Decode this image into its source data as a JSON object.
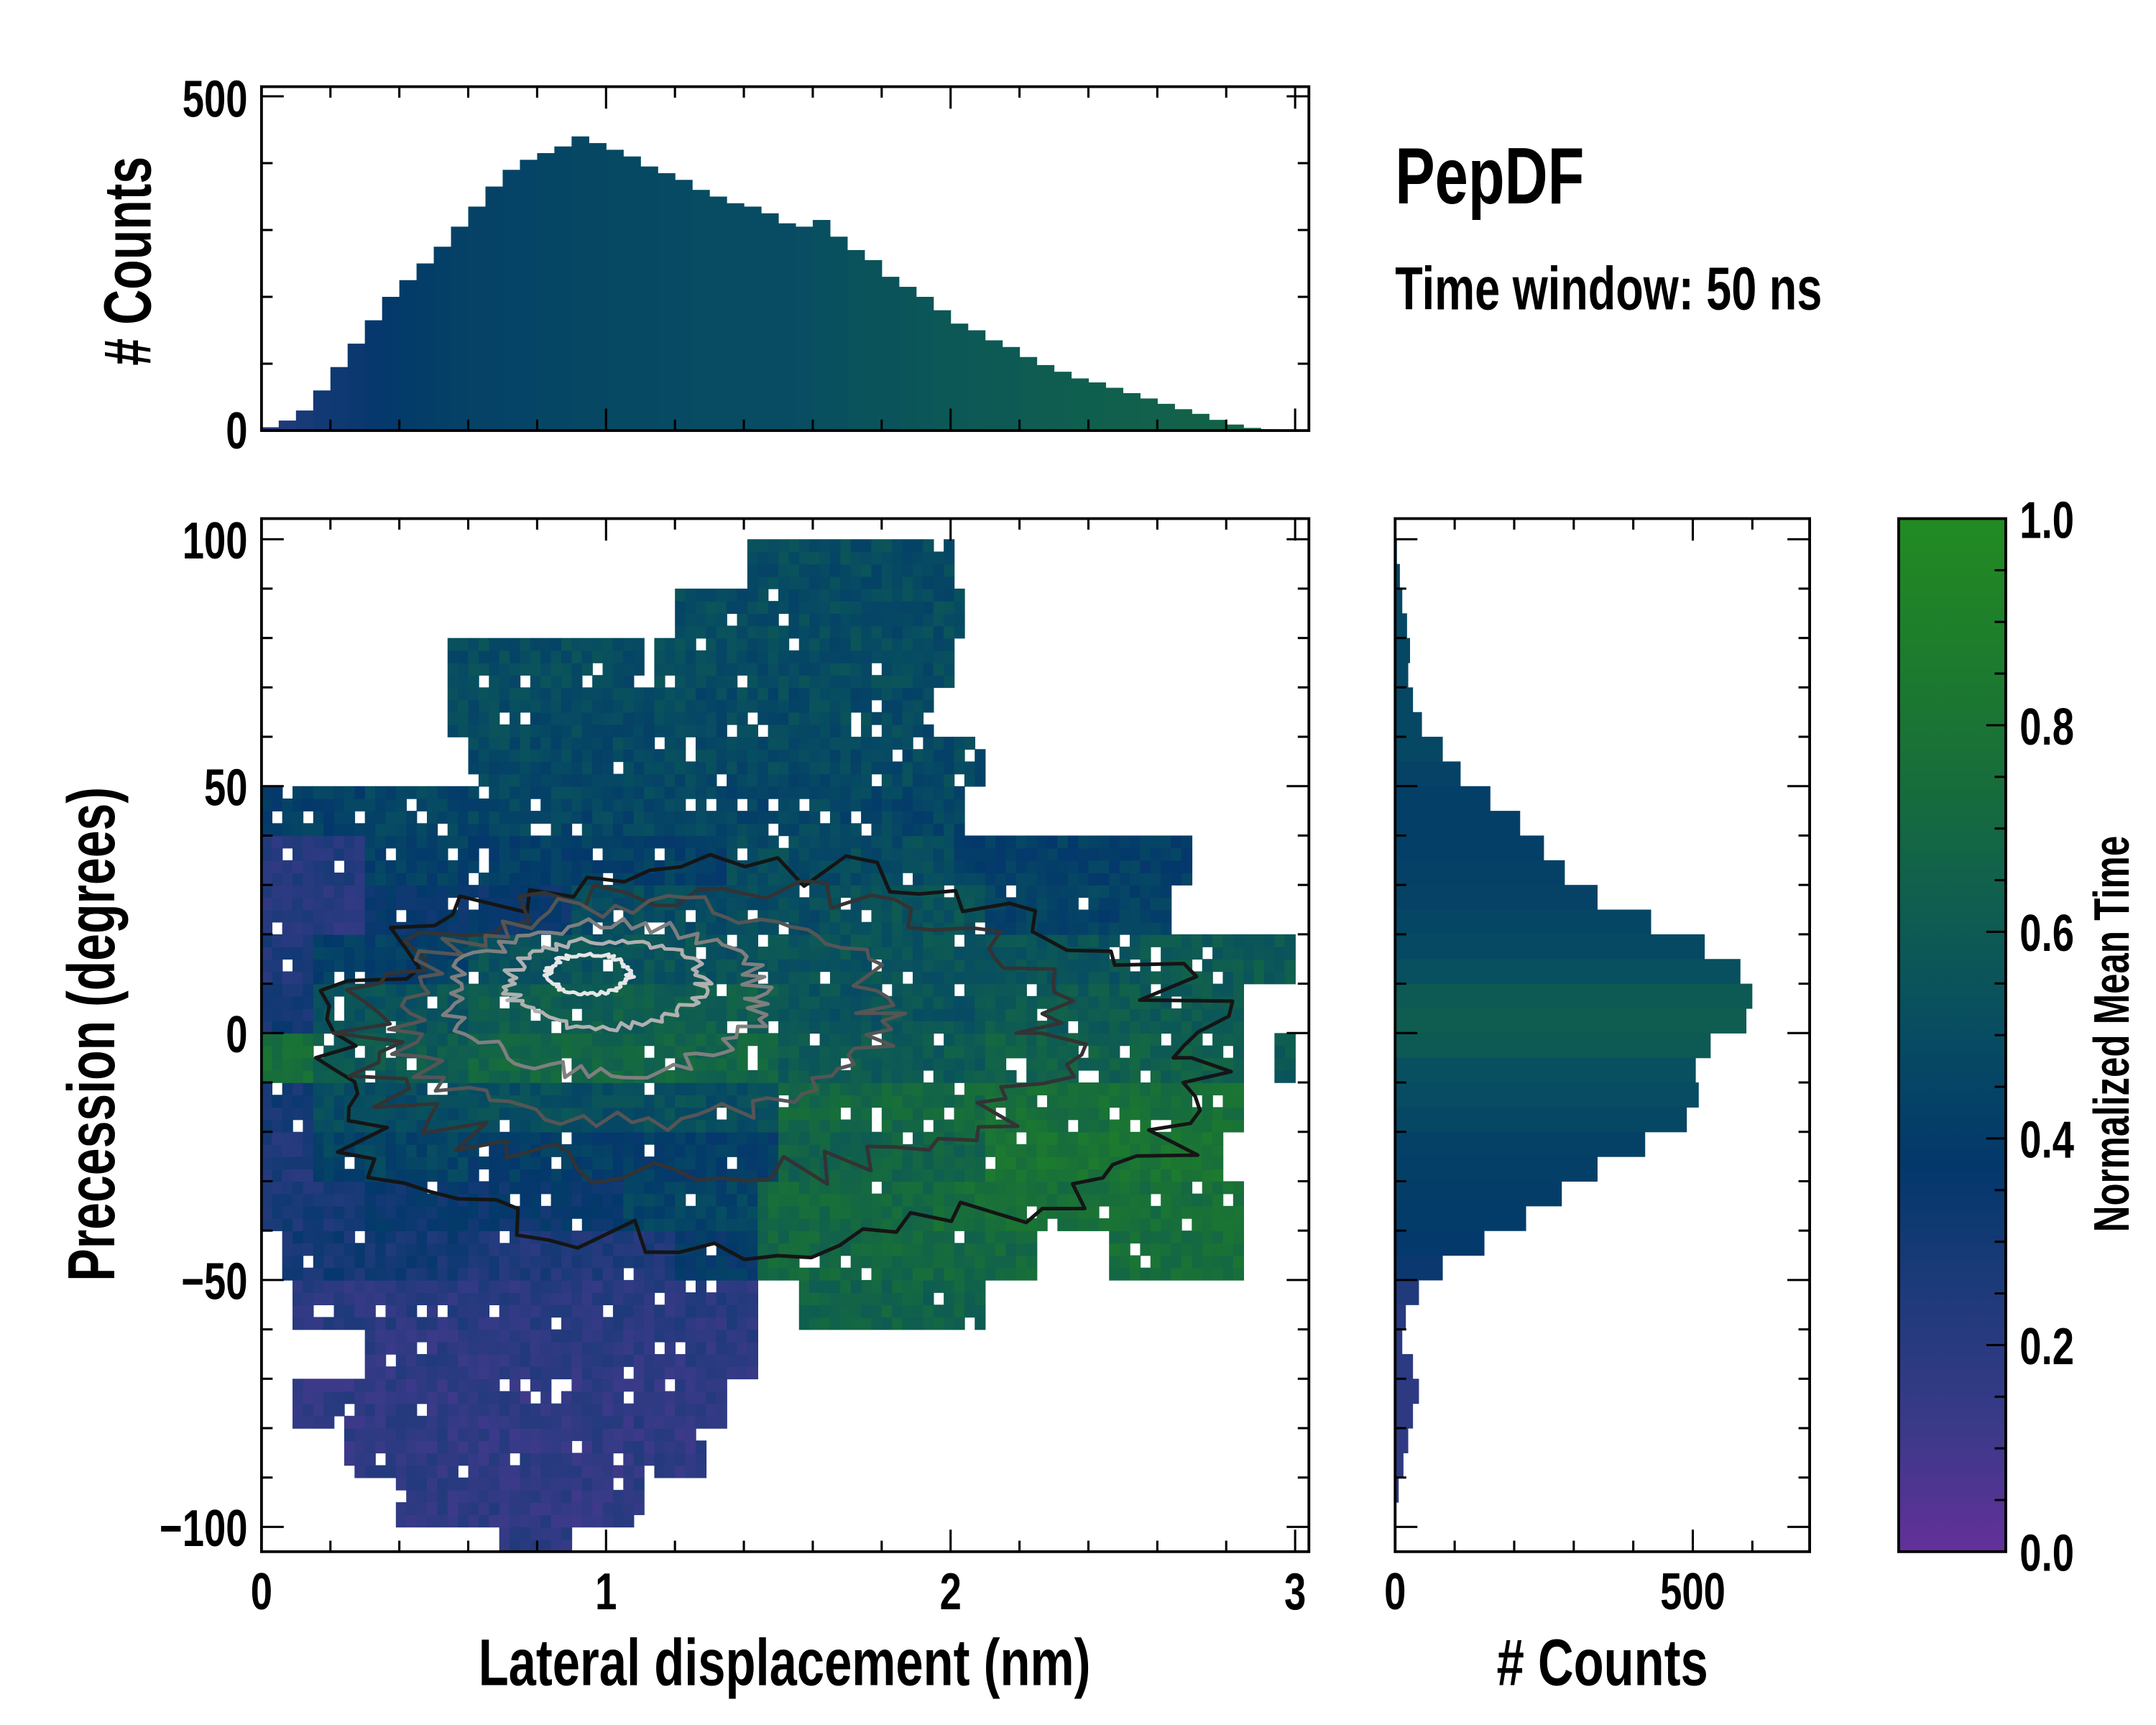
{
  "title": "PepDF",
  "subtitle": "Time window: 50 ns",
  "chart_data": [
    {
      "id": "top-histogram",
      "type": "bar",
      "ylabel": "# Counts",
      "xlim": [
        0,
        3.03
      ],
      "ylim": [
        0,
        515
      ],
      "ytick_labels": [
        "0",
        "500"
      ],
      "bin_width": 0.05,
      "bin_starts": [
        0,
        0.05,
        0.1,
        0.15,
        0.2,
        0.25,
        0.3,
        0.35,
        0.4,
        0.45,
        0.5,
        0.55,
        0.6,
        0.65,
        0.7,
        0.75,
        0.8,
        0.85,
        0.9,
        0.95,
        1.0,
        1.05,
        1.1,
        1.15,
        1.2,
        1.25,
        1.3,
        1.35,
        1.4,
        1.45,
        1.5,
        1.55,
        1.6,
        1.65,
        1.7,
        1.75,
        1.8,
        1.85,
        1.9,
        1.95,
        2.0,
        2.05,
        2.1,
        2.15,
        2.2,
        2.25,
        2.3,
        2.35,
        2.4,
        2.45,
        2.5,
        2.55,
        2.6,
        2.65,
        2.7,
        2.75,
        2.8,
        2.85,
        2.9,
        2.95
      ],
      "values": [
        5,
        15,
        30,
        60,
        95,
        130,
        165,
        200,
        225,
        250,
        275,
        305,
        335,
        365,
        390,
        405,
        415,
        425,
        440,
        430,
        420,
        410,
        395,
        385,
        375,
        360,
        350,
        340,
        335,
        325,
        310,
        305,
        315,
        290,
        270,
        255,
        230,
        215,
        200,
        180,
        160,
        150,
        135,
        125,
        110,
        98,
        88,
        78,
        72,
        64,
        56,
        48,
        40,
        32,
        25,
        16,
        9,
        4,
        2,
        0
      ],
      "mean_time": [
        0.22,
        0.25,
        0.28,
        0.3,
        0.32,
        0.34,
        0.36,
        0.38,
        0.4,
        0.41,
        0.42,
        0.43,
        0.44,
        0.44,
        0.45,
        0.45,
        0.46,
        0.46,
        0.47,
        0.47,
        0.48,
        0.48,
        0.48,
        0.49,
        0.49,
        0.5,
        0.5,
        0.5,
        0.5,
        0.5,
        0.5,
        0.51,
        0.52,
        0.53,
        0.54,
        0.55,
        0.55,
        0.56,
        0.57,
        0.58,
        0.58,
        0.59,
        0.6,
        0.6,
        0.61,
        0.62,
        0.62,
        0.63,
        0.63,
        0.64,
        0.64,
        0.65,
        0.65,
        0.66,
        0.66,
        0.66,
        0.67,
        0.67,
        0.67,
        0.67
      ]
    },
    {
      "id": "main-heatmap",
      "type": "heatmap",
      "xlabel": "Lateral displacement (nm)",
      "ylabel": "Precession (degrees)",
      "xlim": [
        0,
        3.03
      ],
      "ylim": [
        -105,
        104
      ],
      "xtick_labels": [
        "0",
        "1",
        "2",
        "3"
      ],
      "xticks": [
        0,
        1,
        2,
        3
      ],
      "ytick_labels": [
        "100",
        "50",
        "0",
        "−50",
        "−100"
      ],
      "yticks": [
        100,
        50,
        0,
        -50,
        -100
      ],
      "value_label": "Normalized Mean Time",
      "rows": [
        {
          "y": [
            90,
            100
          ],
          "segments": [
            [
              1.42,
              2.02,
              0.5
            ]
          ]
        },
        {
          "y": [
            80,
            90
          ],
          "segments": [
            [
              1.2,
              2.05,
              0.5
            ]
          ]
        },
        {
          "y": [
            70,
            80
          ],
          "segments": [
            [
              0.55,
              1.1,
              0.5
            ],
            [
              1.15,
              2.0,
              0.5
            ]
          ]
        },
        {
          "y": [
            60,
            70
          ],
          "segments": [
            [
              0.55,
              1.95,
              0.49
            ]
          ]
        },
        {
          "y": [
            50,
            60
          ],
          "segments": [
            [
              0.6,
              2.1,
              0.48
            ]
          ]
        },
        {
          "y": [
            40,
            50
          ],
          "segments": [
            [
              0.0,
              0.3,
              0.42
            ],
            [
              0.3,
              2.05,
              0.46
            ]
          ]
        },
        {
          "y": [
            30,
            40
          ],
          "segments": [
            [
              0.0,
              0.3,
              0.22
            ],
            [
              0.3,
              1.35,
              0.42
            ],
            [
              1.35,
              2.0,
              0.5
            ],
            [
              2.0,
              2.7,
              0.42
            ]
          ]
        },
        {
          "y": [
            20,
            30
          ],
          "segments": [
            [
              0.0,
              0.3,
              0.2
            ],
            [
              0.3,
              0.9,
              0.36
            ],
            [
              0.9,
              1.65,
              0.5
            ],
            [
              1.65,
              2.1,
              0.55
            ],
            [
              2.1,
              2.65,
              0.44
            ]
          ]
        },
        {
          "y": [
            10,
            20
          ],
          "segments": [
            [
              0.0,
              0.15,
              0.25
            ],
            [
              0.15,
              0.6,
              0.42
            ],
            [
              0.6,
              1.5,
              0.55
            ],
            [
              1.5,
              2.1,
              0.55
            ],
            [
              2.1,
              2.55,
              0.55
            ],
            [
              2.55,
              3.0,
              0.6
            ]
          ]
        },
        {
          "y": [
            0,
            10
          ],
          "segments": [
            [
              0.0,
              0.15,
              0.3
            ],
            [
              0.15,
              0.6,
              0.55
            ],
            [
              0.6,
              1.5,
              0.63
            ],
            [
              1.5,
              2.1,
              0.55
            ],
            [
              2.1,
              2.85,
              0.6
            ]
          ]
        },
        {
          "y": [
            -10,
            0
          ],
          "segments": [
            [
              0.0,
              0.15,
              0.75
            ],
            [
              0.15,
              0.6,
              0.6
            ],
            [
              0.6,
              1.5,
              0.68
            ],
            [
              1.5,
              2.1,
              0.6
            ],
            [
              2.1,
              2.85,
              0.65
            ],
            [
              2.93,
              2.99,
              0.6
            ]
          ]
        },
        {
          "y": [
            -20,
            -10
          ],
          "segments": [
            [
              0.0,
              0.15,
              0.3
            ],
            [
              0.15,
              0.6,
              0.5
            ],
            [
              0.6,
              1.5,
              0.52
            ],
            [
              1.5,
              2.1,
              0.7
            ],
            [
              2.1,
              2.85,
              0.76
            ]
          ]
        },
        {
          "y": [
            -30,
            -20
          ],
          "segments": [
            [
              0.0,
              0.15,
              0.25
            ],
            [
              0.15,
              0.6,
              0.45
            ],
            [
              0.6,
              1.5,
              0.4
            ],
            [
              1.5,
              2.1,
              0.66
            ],
            [
              2.1,
              2.8,
              0.8
            ]
          ]
        },
        {
          "y": [
            -40,
            -30
          ],
          "segments": [
            [
              0.0,
              0.3,
              0.28
            ],
            [
              0.3,
              1.05,
              0.35
            ],
            [
              1.05,
              1.45,
              0.45
            ],
            [
              1.45,
              1.95,
              0.7
            ],
            [
              1.95,
              2.85,
              0.75
            ]
          ]
        },
        {
          "y": [
            -50,
            -40
          ],
          "segments": [
            [
              0.05,
              0.6,
              0.3
            ],
            [
              0.6,
              1.2,
              0.25
            ],
            [
              1.2,
              1.45,
              0.38
            ],
            [
              1.45,
              2.25,
              0.7
            ],
            [
              2.45,
              2.85,
              0.75
            ]
          ]
        },
        {
          "y": [
            -60,
            -50
          ],
          "segments": [
            [
              0.1,
              1.45,
              0.2
            ],
            [
              1.55,
              2.1,
              0.66
            ]
          ]
        },
        {
          "y": [
            -70,
            -60
          ],
          "segments": [
            [
              0.3,
              1.45,
              0.18
            ]
          ]
        },
        {
          "y": [
            -80,
            -70
          ],
          "segments": [
            [
              0.1,
              1.35,
              0.17
            ]
          ]
        },
        {
          "y": [
            -90,
            -80
          ],
          "segments": [
            [
              0.25,
              1.3,
              0.17
            ]
          ]
        },
        {
          "y": [
            -100,
            -90
          ],
          "segments": [
            [
              0.4,
              1.1,
              0.17
            ]
          ]
        },
        {
          "y": [
            -105,
            -100
          ],
          "segments": [
            [
              0.7,
              0.9,
              0.18
            ]
          ]
        }
      ],
      "contours": [
        {
          "center": [
            1.45,
            -5
          ],
          "radii": [
            1.3,
            38
          ],
          "color": "#151515"
        },
        {
          "center": [
            1.3,
            0
          ],
          "radii": [
            1.0,
            29
          ],
          "color": "#333333"
        },
        {
          "center": [
            1.1,
            4
          ],
          "radii": [
            0.7,
            22
          ],
          "color": "#555555"
        },
        {
          "center": [
            1.0,
            7
          ],
          "radii": [
            0.45,
            15
          ],
          "color": "#7f7f7f"
        },
        {
          "center": [
            1.0,
            10
          ],
          "radii": [
            0.28,
            9
          ],
          "color": "#b0b0b0"
        },
        {
          "center": [
            0.95,
            12
          ],
          "radii": [
            0.12,
            4
          ],
          "color": "#e6e6e6"
        }
      ]
    },
    {
      "id": "right-histogram",
      "type": "bar",
      "orientation": "horizontal",
      "xlabel": "# Counts",
      "xlim": [
        0,
        697
      ],
      "xtick_labels": [
        "0",
        "500"
      ],
      "bin_width": 5,
      "bin_starts": [
        95,
        90,
        85,
        80,
        75,
        70,
        65,
        60,
        55,
        50,
        45,
        40,
        35,
        30,
        25,
        20,
        15,
        10,
        5,
        0,
        -5,
        -10,
        -15,
        -20,
        -25,
        -30,
        -35,
        -40,
        -45,
        -50,
        -55,
        -60,
        -65,
        -70,
        -75,
        -80,
        -85,
        -90,
        -95,
        -100
      ],
      "values": [
        3,
        8,
        12,
        20,
        25,
        22,
        30,
        45,
        80,
        110,
        160,
        210,
        250,
        285,
        340,
        430,
        520,
        580,
        600,
        590,
        530,
        505,
        510,
        490,
        420,
        340,
        280,
        220,
        150,
        80,
        40,
        18,
        12,
        30,
        40,
        30,
        22,
        14,
        6,
        2
      ],
      "mean_time": [
        0.47,
        0.47,
        0.47,
        0.47,
        0.47,
        0.47,
        0.47,
        0.47,
        0.47,
        0.44,
        0.42,
        0.42,
        0.42,
        0.43,
        0.44,
        0.46,
        0.48,
        0.52,
        0.6,
        0.62,
        0.6,
        0.52,
        0.5,
        0.47,
        0.43,
        0.42,
        0.41,
        0.4,
        0.38,
        0.34,
        0.24,
        0.2,
        0.2,
        0.19,
        0.18,
        0.18,
        0.17,
        0.17,
        0.17,
        0.17
      ]
    },
    {
      "id": "colorbar",
      "type": "colorbar",
      "label": "Normalized Mean Time",
      "range": [
        0,
        1
      ],
      "tick_labels": [
        "0.0",
        "0.2",
        "0.4",
        "0.6",
        "0.8",
        "1.0"
      ],
      "ticks": [
        0,
        0.2,
        0.4,
        0.6,
        0.8,
        1.0
      ],
      "colormap": [
        "#63309a",
        "#393a88",
        "#1e3a7a",
        "#03386b",
        "#074c62",
        "#0f5e50",
        "#186e3a",
        "#1d7d2c",
        "#228b22"
      ]
    }
  ]
}
